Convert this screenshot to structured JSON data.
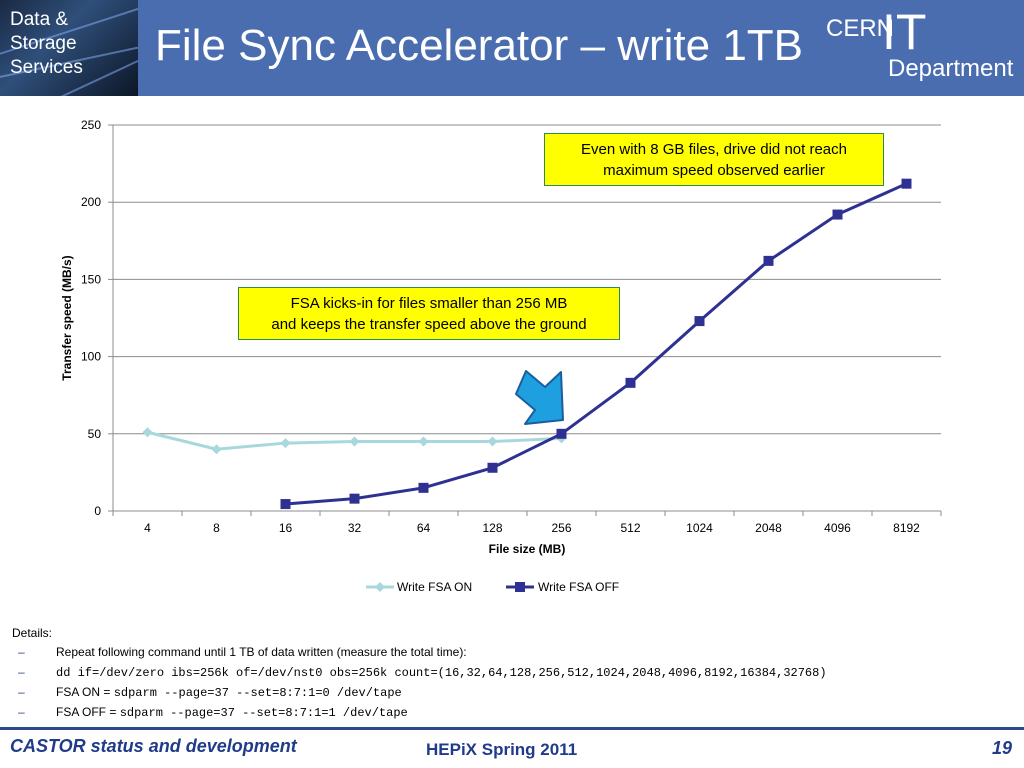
{
  "header": {
    "badge": "Data &\nStorage\nServices",
    "title": "File Sync Accelerator – write 1TB",
    "logo_cern": "CERN",
    "logo_it": "IT",
    "logo_department": "Department"
  },
  "chart_data": {
    "type": "line",
    "xlabel": "File size (MB)",
    "ylabel": "Transfer speed (MB/s)",
    "categories": [
      "4",
      "8",
      "16",
      "32",
      "64",
      "128",
      "256",
      "512",
      "1024",
      "2048",
      "4096",
      "8192"
    ],
    "yticks": [
      "0",
      "50",
      "100",
      "150",
      "200",
      "250"
    ],
    "ylim": [
      0,
      250
    ],
    "grid": true,
    "legend_position": "bottom",
    "series": [
      {
        "name": "Write FSA ON",
        "color": "#a8d8dc",
        "marker": "diamond",
        "values": [
          51,
          40,
          44,
          45,
          45,
          45,
          47,
          null,
          null,
          null,
          null,
          null
        ]
      },
      {
        "name": "Write FSA OFF",
        "color": "#2e3192",
        "marker": "square",
        "values": [
          null,
          null,
          4.5,
          8,
          15,
          28,
          50,
          83,
          123,
          162,
          192,
          212
        ]
      }
    ],
    "annotations": [
      {
        "id": "callout_8gb",
        "text": "Even with 8 GB files, drive did not reach\nmaximum speed observed earlier"
      },
      {
        "id": "callout_fsa",
        "text": "FSA kicks-in for files smaller than 256 MB\nand keeps the transfer speed above the ground"
      }
    ]
  },
  "details": {
    "title": "Details:",
    "items": [
      {
        "prefix": "Repeat following command until 1 TB of data written (measure the total time):",
        "code": ""
      },
      {
        "prefix": "",
        "code": "dd if=/dev/zero ibs=256k of=/dev/nst0 obs=256k count=(16,32,64,128,256,512,1024,2048,4096,8192,16384,32768)"
      },
      {
        "prefix": "FSA ON = ",
        "code": "sdparm --page=37 --set=8:7:1=0 /dev/tape"
      },
      {
        "prefix": "FSA OFF = ",
        "code": "sdparm --page=37 --set=8:7:1=1 /dev/tape"
      }
    ]
  },
  "footer": {
    "left": "CASTOR status and development",
    "center": "HEPiX Spring 2011",
    "page": "19"
  }
}
